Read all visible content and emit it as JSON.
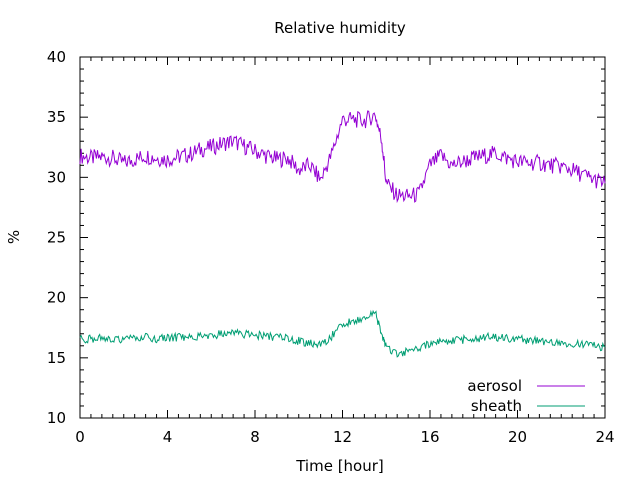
{
  "chart_data": {
    "type": "line",
    "title": "Relative humidity",
    "xlabel": "Time [hour]",
    "ylabel": "%",
    "xlim": [
      0,
      24
    ],
    "ylim": [
      10,
      40
    ],
    "x_ticks": [
      0,
      4,
      8,
      12,
      16,
      20,
      24
    ],
    "y_ticks": [
      10,
      15,
      20,
      25,
      30,
      35,
      40
    ],
    "grid": false,
    "legend_position": "bottom-right",
    "series": [
      {
        "name": "aerosol",
        "color": "#9400d3",
        "x": [
          0,
          0.5,
          1,
          1.5,
          2,
          2.5,
          3,
          3.5,
          4,
          4.5,
          5,
          5.5,
          6,
          6.5,
          7,
          7.5,
          8,
          8.5,
          9,
          9.5,
          10,
          10.5,
          11,
          11.5,
          12,
          12.5,
          13,
          13.5,
          13.8,
          14,
          14.5,
          15,
          15.5,
          16,
          16.5,
          17,
          17.5,
          18,
          18.5,
          19,
          19.5,
          20,
          20.5,
          21,
          21.5,
          22,
          22.5,
          23,
          23.5,
          24
        ],
        "y": [
          31.8,
          31.6,
          31.7,
          31.6,
          31.2,
          31.5,
          31.8,
          31.6,
          31.5,
          31.7,
          31.9,
          32.3,
          32.5,
          32.8,
          33.0,
          32.6,
          32.2,
          31.8,
          31.5,
          31.6,
          30.6,
          31.0,
          29.8,
          31.9,
          34.8,
          34.8,
          34.7,
          35.2,
          33.0,
          29.5,
          28.5,
          28.4,
          28.6,
          31.0,
          31.8,
          31.0,
          31.3,
          31.6,
          31.8,
          32.0,
          31.6,
          31.3,
          31.2,
          31.2,
          31.0,
          30.9,
          30.6,
          30.2,
          29.8,
          29.5
        ]
      },
      {
        "name": "sheath",
        "color": "#009e73",
        "x": [
          0,
          0.5,
          1,
          1.5,
          2,
          2.5,
          3,
          3.5,
          4,
          4.5,
          5,
          5.5,
          6,
          6.5,
          7,
          7.5,
          8,
          8.5,
          9,
          9.5,
          10,
          10.5,
          11,
          11.5,
          12,
          12.5,
          13,
          13.5,
          13.8,
          14,
          14.5,
          15,
          15.5,
          16,
          16.5,
          17,
          17.5,
          18,
          18.5,
          19,
          19.5,
          20,
          20.5,
          21,
          21.5,
          22,
          22.5,
          23,
          23.5,
          24
        ],
        "y": [
          16.5,
          16.6,
          16.7,
          16.6,
          16.5,
          16.6,
          16.7,
          16.6,
          16.6,
          16.7,
          16.8,
          16.8,
          16.9,
          17.0,
          17.2,
          17.0,
          16.9,
          16.8,
          16.7,
          16.6,
          16.4,
          16.2,
          16.0,
          16.8,
          17.8,
          18.0,
          18.3,
          18.8,
          17.0,
          15.8,
          15.4,
          15.5,
          15.8,
          16.2,
          16.4,
          16.4,
          16.5,
          16.6,
          16.7,
          16.7,
          16.6,
          16.5,
          16.5,
          16.4,
          16.4,
          16.3,
          16.2,
          16.1,
          16.0,
          15.9
        ]
      }
    ]
  }
}
